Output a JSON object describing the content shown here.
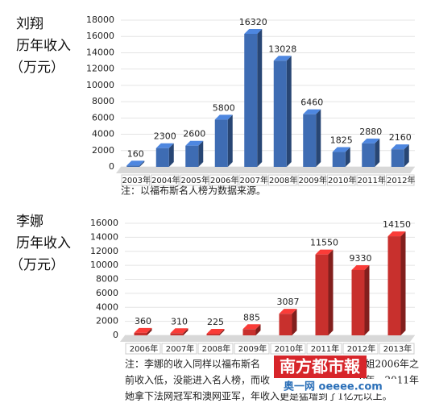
{
  "chart_data": [
    {
      "type": "bar",
      "title": "刘翔",
      "subtitle": "历年收入",
      "unit": "（万元）",
      "categories": [
        "2003年",
        "2004年",
        "2005年",
        "2006年",
        "2007年",
        "2008年",
        "2009年",
        "2010年",
        "2011年",
        "2012年"
      ],
      "values": [
        160,
        2300,
        2600,
        5800,
        16320,
        13028,
        6460,
        1825,
        2880,
        2160
      ],
      "color": "#3e6cb3",
      "ylim": [
        0,
        18000
      ],
      "yticks": [
        0,
        2000,
        4000,
        6000,
        8000,
        10000,
        12000,
        14000,
        16000,
        18000
      ],
      "grid": true,
      "note_lines": [
        [
          "注：以福布斯名人榜为数据来源。"
        ]
      ]
    },
    {
      "type": "bar",
      "title": "李娜",
      "subtitle": "历年收入",
      "unit": "（万元）",
      "categories": [
        "2006年",
        "2007年",
        "2008年",
        "2009年",
        "2010年",
        "2011年",
        "2012年",
        "2013年"
      ],
      "values": [
        360,
        310,
        225,
        885,
        3087,
        11550,
        9330,
        14150
      ],
      "color": "#c8302d",
      "ylim": [
        0,
        16000
      ],
      "yticks": [
        0,
        2000,
        4000,
        6000,
        8000,
        10000,
        12000,
        14000,
        16000
      ],
      "grid": true,
      "note_lines": [
        [
          "注：李娜的收入同样以福布斯名",
          "姐2006年之"
        ],
        [
          "前收入低，没能进入名人榜，而收",
          "0年。2011年"
        ],
        [
          "她拿下法网冠军和澳网亚军，年收入更是猛增到了1亿元以上。"
        ]
      ]
    }
  ],
  "watermark": {
    "brand": "南方都市報",
    "site": "奥一网 oeeee.com"
  }
}
